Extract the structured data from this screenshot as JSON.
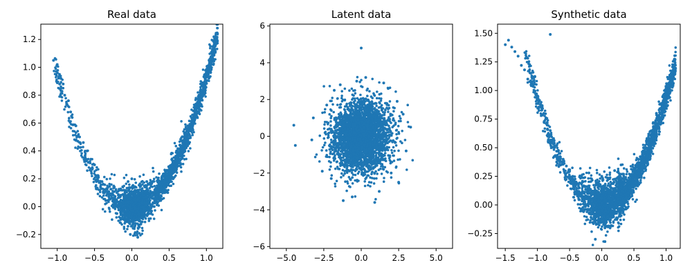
{
  "chart_data": [
    {
      "type": "scatter",
      "title": "Real data",
      "xlabel": "",
      "ylabel": "",
      "xlim": [
        -1.22,
        1.22
      ],
      "ylim": [
        -0.3,
        1.31
      ],
      "xticks": [
        -1.0,
        -0.5,
        0.0,
        0.5,
        1.0
      ],
      "xtick_labels": [
        "−1.0",
        "−0.5",
        "0.0",
        "0.5",
        "1.0"
      ],
      "yticks": [
        -0.2,
        0.0,
        0.2,
        0.4,
        0.6,
        0.8,
        1.0,
        1.2
      ],
      "ytick_labels": [
        "−0.2",
        "0.0",
        "0.2",
        "0.4",
        "0.6",
        "0.8",
        "1.0",
        "1.2"
      ],
      "grid": false,
      "color": "#1f77b4",
      "point_shape": "v-shaped band: y approx x squared, dense cluster near origin, sparse left arm, dense right arm",
      "points": [
        {
          "x": -1.05,
          "y": 1.05
        },
        {
          "x": -1.0,
          "y": 1.02
        },
        {
          "x": -0.97,
          "y": 0.95
        },
        {
          "x": -0.95,
          "y": 0.92
        },
        {
          "x": -0.92,
          "y": 0.88
        },
        {
          "x": -0.9,
          "y": 0.8
        },
        {
          "x": -0.85,
          "y": 0.76
        },
        {
          "x": -0.82,
          "y": 0.68
        },
        {
          "x": -0.8,
          "y": 0.64
        },
        {
          "x": -0.75,
          "y": 0.58
        },
        {
          "x": -0.7,
          "y": 0.5
        },
        {
          "x": -0.65,
          "y": 0.46
        },
        {
          "x": -0.6,
          "y": 0.4
        },
        {
          "x": -0.55,
          "y": 0.34
        },
        {
          "x": -0.5,
          "y": 0.3
        },
        {
          "x": -0.45,
          "y": 0.22
        },
        {
          "x": -0.4,
          "y": 0.18
        },
        {
          "x": -0.35,
          "y": 0.12
        },
        {
          "x": -0.3,
          "y": 0.08
        },
        {
          "x": -0.25,
          "y": 0.06
        },
        {
          "x": -0.2,
          "y": 0.04
        },
        {
          "x": -0.15,
          "y": 0.02
        },
        {
          "x": -0.1,
          "y": -0.02
        },
        {
          "x": -0.05,
          "y": -0.05
        },
        {
          "x": 0.0,
          "y": -0.1
        },
        {
          "x": 0.05,
          "y": -0.12
        },
        {
          "x": 0.1,
          "y": -0.05
        },
        {
          "x": 0.15,
          "y": 0.0
        },
        {
          "x": 0.2,
          "y": 0.05
        },
        {
          "x": 0.25,
          "y": 0.08
        },
        {
          "x": 0.3,
          "y": 0.1
        },
        {
          "x": 0.35,
          "y": 0.14
        },
        {
          "x": 0.4,
          "y": 0.2
        },
        {
          "x": 0.45,
          "y": 0.24
        },
        {
          "x": 0.5,
          "y": 0.28
        },
        {
          "x": 0.55,
          "y": 0.32
        },
        {
          "x": 0.6,
          "y": 0.4
        },
        {
          "x": 0.65,
          "y": 0.44
        },
        {
          "x": 0.7,
          "y": 0.5
        },
        {
          "x": 0.75,
          "y": 0.58
        },
        {
          "x": 0.8,
          "y": 0.64
        },
        {
          "x": 0.85,
          "y": 0.72
        },
        {
          "x": 0.9,
          "y": 0.8
        },
        {
          "x": 0.95,
          "y": 0.88
        },
        {
          "x": 1.0,
          "y": 0.96
        },
        {
          "x": 1.05,
          "y": 1.05
        },
        {
          "x": 1.08,
          "y": 1.12
        },
        {
          "x": 1.1,
          "y": 1.22
        },
        {
          "x": 0.0,
          "y": 0.2
        },
        {
          "x": -0.05,
          "y": 0.18
        },
        {
          "x": 0.12,
          "y": 0.15
        },
        {
          "x": 0.08,
          "y": -0.22
        },
        {
          "x": -0.02,
          "y": -0.2
        },
        {
          "x": 0.3,
          "y": 0.0
        },
        {
          "x": -0.2,
          "y": -0.05
        },
        {
          "x": 0.2,
          "y": 0.18
        }
      ]
    },
    {
      "type": "scatter",
      "title": "Latent data",
      "xlabel": "",
      "ylabel": "",
      "xlim": [
        -6.1,
        6.1
      ],
      "ylim": [
        -6.1,
        6.1
      ],
      "xticks": [
        -5.0,
        -2.5,
        0.0,
        2.5,
        5.0
      ],
      "xtick_labels": [
        "−5.0",
        "−2.5",
        "0.0",
        "2.5",
        "5.0"
      ],
      "yticks": [
        -6,
        -4,
        -2,
        0,
        2,
        4,
        6
      ],
      "ytick_labels": [
        "−6",
        "−4",
        "−2",
        "0",
        "2",
        "4",
        "6"
      ],
      "grid": false,
      "color": "#1f77b4",
      "point_shape": "roughly circular gaussian blob centered at origin, radius about 2.5",
      "points": [
        {
          "x": 0.0,
          "y": 4.8
        },
        {
          "x": -4.5,
          "y": 0.6
        },
        {
          "x": -4.4,
          "y": -0.5
        },
        {
          "x": 3.3,
          "y": 0.5
        },
        {
          "x": -1.2,
          "y": -3.5
        },
        {
          "x": 0.9,
          "y": -3.6
        },
        {
          "x": 2.5,
          "y": -2.5
        },
        {
          "x": 2.4,
          "y": 1.9
        },
        {
          "x": -2.3,
          "y": 1.7
        },
        {
          "x": -2.6,
          "y": -1.9
        },
        {
          "x": -1.8,
          "y": 2.5
        },
        {
          "x": 1.8,
          "y": 2.6
        },
        {
          "x": 0.3,
          "y": 3.2
        },
        {
          "x": -0.3,
          "y": 3.0
        },
        {
          "x": 1.2,
          "y": -3.0
        },
        {
          "x": -0.6,
          "y": -3.3
        },
        {
          "x": 3.0,
          "y": -0.8
        },
        {
          "x": -3.2,
          "y": 1.0
        },
        {
          "x": -3.3,
          "y": -0.2
        },
        {
          "x": 2.8,
          "y": 1.2
        },
        {
          "x": 1.5,
          "y": 2.9
        },
        {
          "x": -1.4,
          "y": 2.8
        },
        {
          "x": 2.0,
          "y": -2.0
        },
        {
          "x": -2.0,
          "y": -2.3
        }
      ]
    },
    {
      "type": "scatter",
      "title": "Synthetic data",
      "xlabel": "",
      "ylabel": "",
      "xlim": [
        -1.62,
        1.22
      ],
      "ylim": [
        -0.38,
        1.58
      ],
      "xticks": [
        -1.5,
        -1.0,
        -0.5,
        0.0,
        0.5,
        1.0
      ],
      "xtick_labels": [
        "−1.5",
        "−1.0",
        "−0.5",
        "0.0",
        "0.5",
        "1.0"
      ],
      "yticks": [
        -0.25,
        0.0,
        0.25,
        0.5,
        0.75,
        1.0,
        1.25,
        1.5
      ],
      "ytick_labels": [
        "−0.25",
        "0.00",
        "0.25",
        "0.50",
        "0.75",
        "1.00",
        "1.25",
        "1.50"
      ],
      "grid": false,
      "color": "#1f77b4",
      "point_shape": "v-shaped band similar to real data, wider spread near origin, scattered outliers at top-left",
      "points": [
        {
          "x": -1.5,
          "y": 1.4
        },
        {
          "x": -1.45,
          "y": 1.44
        },
        {
          "x": -1.4,
          "y": 1.38
        },
        {
          "x": -1.35,
          "y": 1.34
        },
        {
          "x": -1.3,
          "y": 1.3
        },
        {
          "x": -1.25,
          "y": 1.22
        },
        {
          "x": -1.2,
          "y": 1.18
        },
        {
          "x": -1.15,
          "y": 1.1
        },
        {
          "x": -0.8,
          "y": 1.49
        },
        {
          "x": -1.1,
          "y": 1.05
        },
        {
          "x": -1.05,
          "y": 1.0
        },
        {
          "x": -1.0,
          "y": 0.95
        },
        {
          "x": -0.95,
          "y": 0.88
        },
        {
          "x": -0.9,
          "y": 0.8
        },
        {
          "x": -0.85,
          "y": 0.72
        },
        {
          "x": -0.8,
          "y": 0.65
        },
        {
          "x": -0.75,
          "y": 0.58
        },
        {
          "x": -0.7,
          "y": 0.52
        },
        {
          "x": -0.65,
          "y": 0.45
        },
        {
          "x": -0.6,
          "y": 0.4
        },
        {
          "x": -0.55,
          "y": 0.34
        },
        {
          "x": -0.5,
          "y": 0.3
        },
        {
          "x": -0.45,
          "y": 0.25
        },
        {
          "x": -0.4,
          "y": 0.2
        },
        {
          "x": -0.35,
          "y": 0.15
        },
        {
          "x": -0.3,
          "y": 0.12
        },
        {
          "x": -0.25,
          "y": 0.08
        },
        {
          "x": -0.2,
          "y": 0.05
        },
        {
          "x": -0.15,
          "y": 0.02
        },
        {
          "x": -0.1,
          "y": -0.05
        },
        {
          "x": -0.05,
          "y": -0.1
        },
        {
          "x": 0.0,
          "y": -0.15
        },
        {
          "x": 0.05,
          "y": -0.2
        },
        {
          "x": 0.1,
          "y": -0.12
        },
        {
          "x": 0.15,
          "y": -0.05
        },
        {
          "x": 0.2,
          "y": 0.0
        },
        {
          "x": 0.25,
          "y": 0.05
        },
        {
          "x": 0.3,
          "y": 0.1
        },
        {
          "x": 0.35,
          "y": 0.15
        },
        {
          "x": 0.4,
          "y": 0.2
        },
        {
          "x": 0.45,
          "y": 0.25
        },
        {
          "x": 0.5,
          "y": 0.3
        },
        {
          "x": 0.55,
          "y": 0.35
        },
        {
          "x": 0.6,
          "y": 0.42
        },
        {
          "x": 0.65,
          "y": 0.5
        },
        {
          "x": 0.7,
          "y": 0.56
        },
        {
          "x": 0.75,
          "y": 0.64
        },
        {
          "x": 0.8,
          "y": 0.72
        },
        {
          "x": 0.85,
          "y": 0.8
        },
        {
          "x": 0.9,
          "y": 0.88
        },
        {
          "x": 0.95,
          "y": 0.95
        },
        {
          "x": 1.0,
          "y": 1.02
        },
        {
          "x": 1.05,
          "y": 1.1
        },
        {
          "x": 1.08,
          "y": 1.15
        },
        {
          "x": -0.1,
          "y": -0.3
        },
        {
          "x": 0.05,
          "y": -0.32
        },
        {
          "x": 0.0,
          "y": 0.25
        },
        {
          "x": 0.2,
          "y": 0.3
        },
        {
          "x": -0.2,
          "y": 0.28
        },
        {
          "x": 0.3,
          "y": 0.35
        }
      ]
    }
  ]
}
